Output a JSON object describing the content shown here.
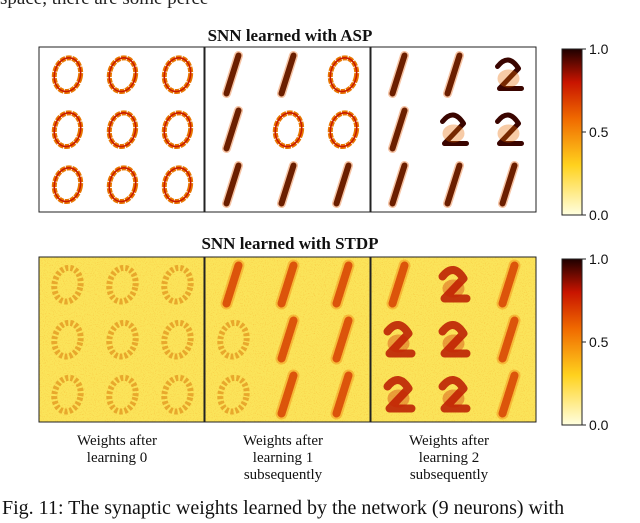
{
  "header_fragment": "space, there are some perce",
  "rows": [
    {
      "title": "SNN learned with ASP",
      "style": "clean",
      "panels": [
        [
          "0",
          "0",
          "0",
          "0",
          "0",
          "0",
          "0",
          "0",
          "0"
        ],
        [
          "1",
          "1",
          "0",
          "1",
          "0",
          "0",
          "1",
          "1",
          "1"
        ],
        [
          "1",
          "1",
          "2",
          "1",
          "2",
          "2",
          "1",
          "1",
          "1"
        ]
      ],
      "colorbar": {
        "ticks": [
          "1.0",
          "0.5",
          "0.0"
        ],
        "values": [
          1.0,
          0.5,
          0.0
        ]
      }
    },
    {
      "title": "SNN learned with STDP",
      "style": "noisy",
      "panels": [
        [
          "0",
          "0",
          "0",
          "0",
          "0",
          "0",
          "0",
          "0",
          "0"
        ],
        [
          "1",
          "1",
          "1",
          "0",
          "1",
          "1",
          "0",
          "1",
          "1"
        ],
        [
          "1",
          "2",
          "1",
          "2",
          "2",
          "1",
          "2",
          "2",
          "1"
        ]
      ],
      "colorbar": {
        "ticks": [
          "1.0",
          "0.5",
          "0.0"
        ],
        "values": [
          1.0,
          0.5,
          0.0
        ]
      }
    }
  ],
  "columns": [
    {
      "line1": "Weights after",
      "line2": "learning 0",
      "line3": ""
    },
    {
      "line1": "Weights after",
      "line2": "learning 1",
      "line3": "subsequently"
    },
    {
      "line1": "Weights after",
      "line2": "learning 2",
      "line3": "subsequently"
    }
  ],
  "colormap": {
    "low": "#ffffe0",
    "mid_low": "#ffd21e",
    "mid": "#f06a00",
    "mid_high": "#c81400",
    "high": "#1e0000"
  },
  "caption": "Fig. 11: The synaptic weights learned by the network (9 neurons) with"
}
